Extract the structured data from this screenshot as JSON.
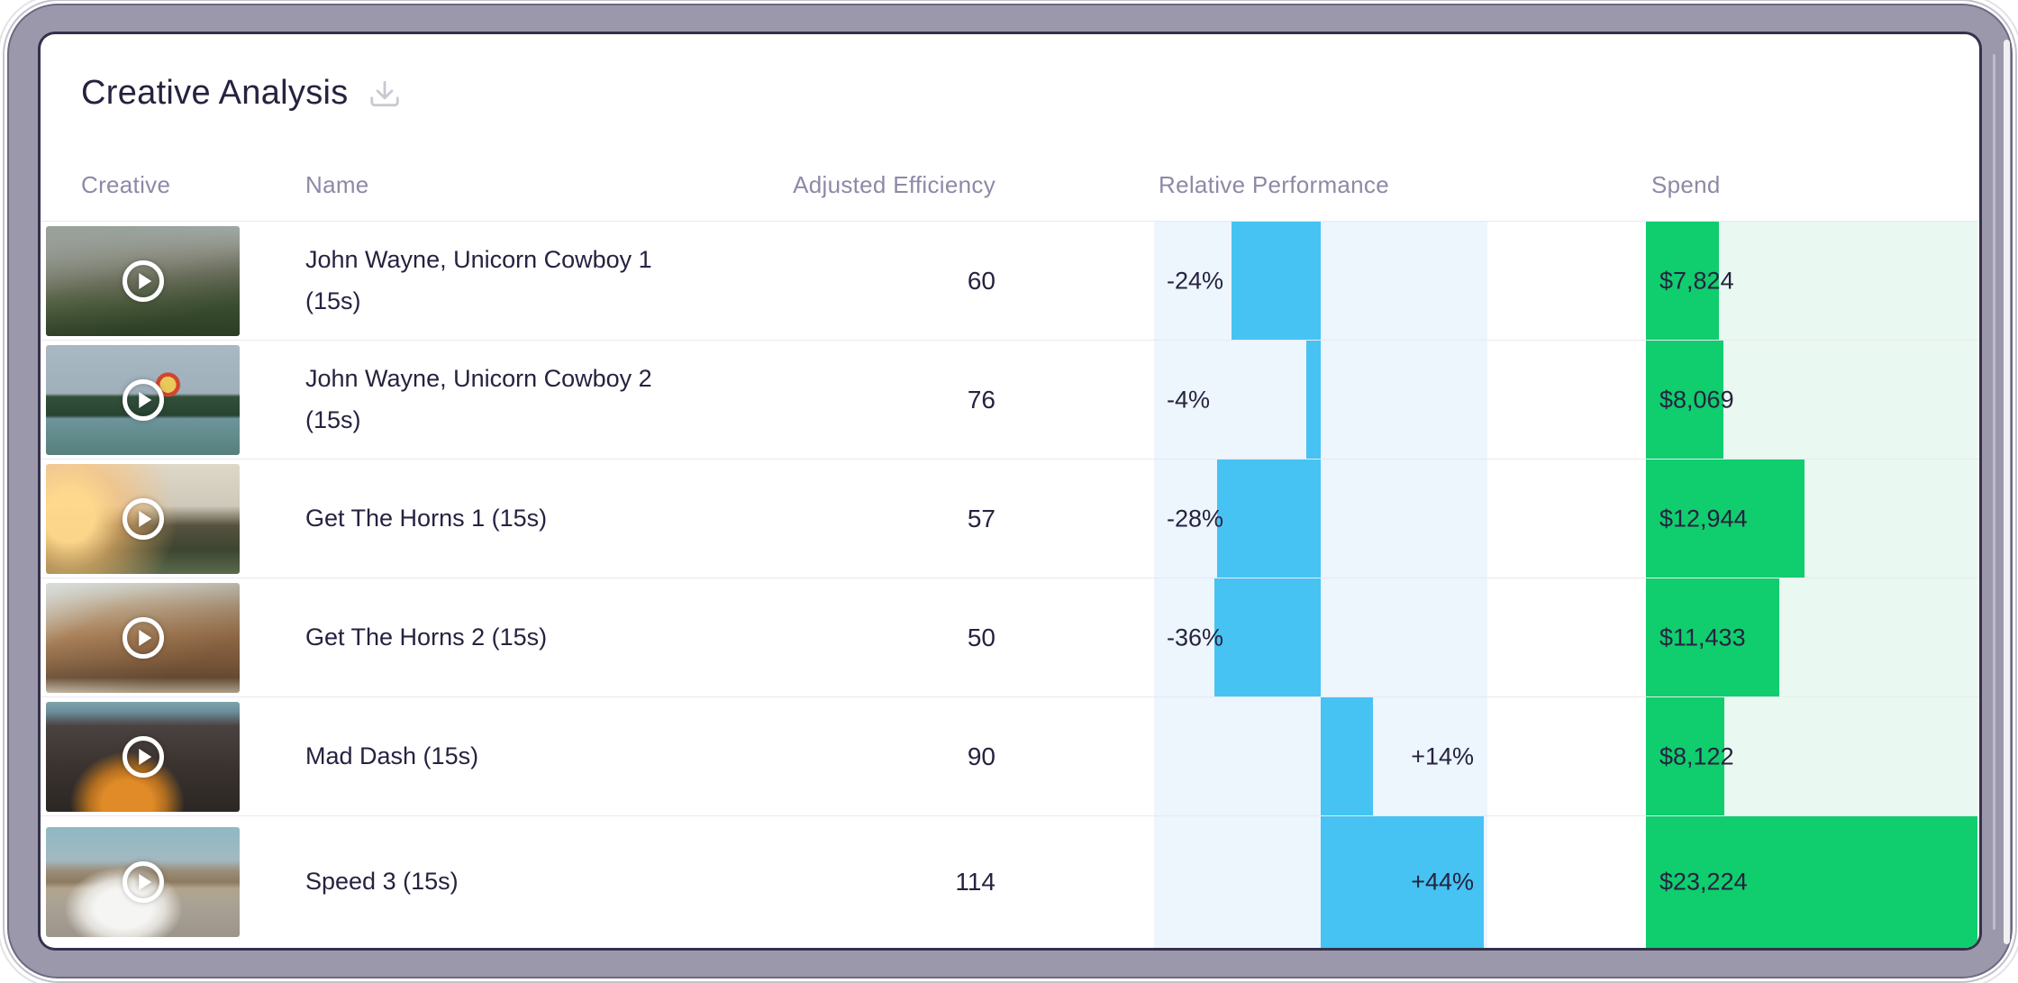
{
  "header": {
    "title": "Creative Analysis",
    "download_icon": "download"
  },
  "table": {
    "columns": [
      "Creative",
      "Name",
      "Adjusted Efficiency",
      "Relative Performance",
      "Spend"
    ],
    "rows": [
      {
        "name": "John Wayne, Unicorn Cowboy 1 (15s)",
        "thumbnail": "mountain-valley-video-thumbnail",
        "efficiency": "60",
        "relative_performance": -24,
        "relative_performance_label": "-24%",
        "spend": 7824,
        "spend_label": "$7,824"
      },
      {
        "name": "John Wayne, Unicorn Cowboy 2 (15s)",
        "thumbnail": "hot-air-balloon-lake-video-thumbnail",
        "efficiency": "76",
        "relative_performance": -4,
        "relative_performance_label": "-4%",
        "spend": 8069,
        "spend_label": "$8,069"
      },
      {
        "name": "Get The Horns 1 (15s)",
        "thumbnail": "sunrise-hills-video-thumbnail",
        "efficiency": "57",
        "relative_performance": -28,
        "relative_performance_label": "-28%",
        "spend": 12944,
        "spend_label": "$12,944"
      },
      {
        "name": "Get The Horns 2 (15s)",
        "thumbnail": "canyon-cliffs-video-thumbnail",
        "efficiency": "50",
        "relative_performance": -36,
        "relative_performance_label": "-36%",
        "spend": 11433,
        "spend_label": "$11,433"
      },
      {
        "name": "Mad Dash (15s)",
        "thumbnail": "hiker-orange-jacket-mountains-video-thumbnail",
        "efficiency": "90",
        "relative_performance": 14,
        "relative_performance_label": "+14%",
        "spend": 8122,
        "spend_label": "$8,122"
      },
      {
        "name": "Speed 3 (15s)",
        "thumbnail": "white-race-car-desert-road-video-thumbnail",
        "efficiency": "114",
        "relative_performance": 44,
        "relative_performance_label": "+44%",
        "spend": 23224,
        "spend_label": "$23,224"
      }
    ]
  },
  "chart_data": [
    {
      "type": "bar",
      "orientation": "horizontal-diverging",
      "title": "Relative Performance",
      "categories": [
        "John Wayne, Unicorn Cowboy 1 (15s)",
        "John Wayne, Unicorn Cowboy 2 (15s)",
        "Get The Horns 1 (15s)",
        "Get The Horns 2 (15s)",
        "Mad Dash (15s)",
        "Speed 3 (15s)"
      ],
      "values": [
        -24,
        -4,
        -28,
        -36,
        14,
        44
      ],
      "value_labels": [
        "-24%",
        "-4%",
        "-28%",
        "-36%",
        "+14%",
        "+44%"
      ],
      "xlim": [
        -45,
        45
      ],
      "bar_color": "#46c3f2",
      "track_color": "#edf5fd",
      "grid": false,
      "legend": false
    },
    {
      "type": "bar",
      "orientation": "horizontal",
      "title": "Spend",
      "categories": [
        "John Wayne, Unicorn Cowboy 1 (15s)",
        "John Wayne, Unicorn Cowboy 2 (15s)",
        "Get The Horns 1 (15s)",
        "Get The Horns 2 (15s)",
        "Mad Dash (15s)",
        "Speed 3 (15s)"
      ],
      "values": [
        7824,
        8069,
        12944,
        11433,
        8122,
        23224
      ],
      "value_labels": [
        "$7,824",
        "$8,069",
        "$12,944",
        "$11,433",
        "$8,122",
        "$23,224"
      ],
      "xlim": [
        0,
        23224
      ],
      "bar_color": "#10cd6e",
      "track_color": "#e9f8f0",
      "grid": false,
      "legend": false
    }
  ],
  "colors": {
    "performance_bar": "#46c3f2",
    "performance_track": "#edf5fd",
    "spend_bar": "#10cd6e",
    "spend_track": "#e9f8f0",
    "text": "#26223f",
    "header_text": "#8d89a6",
    "divider": "#e9e8f2",
    "frame_background": "#9c98ab",
    "card_background": "#ffffff"
  }
}
